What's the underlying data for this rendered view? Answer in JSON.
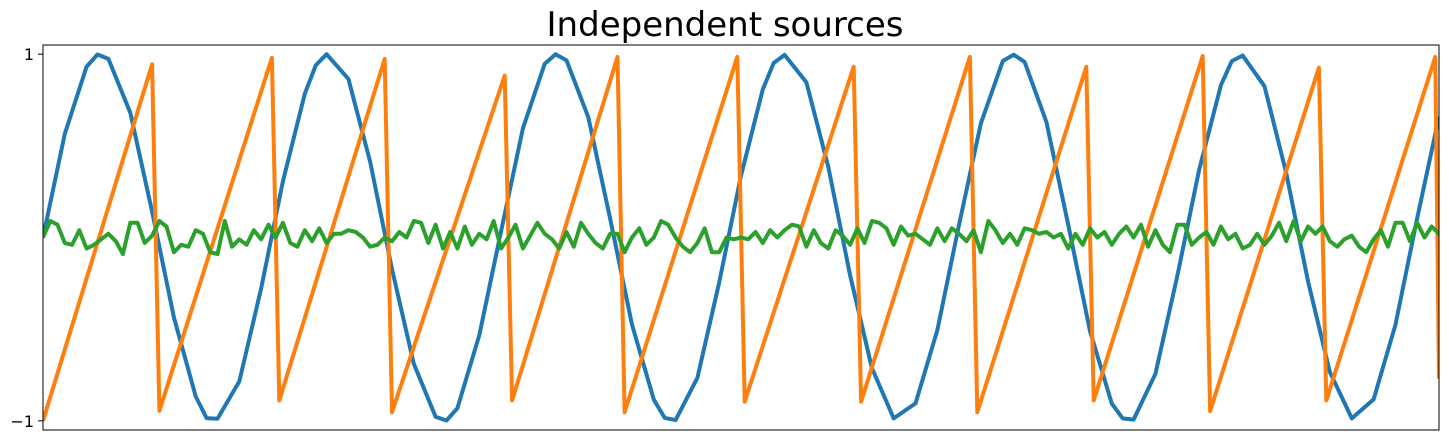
{
  "chart_data": {
    "type": "line",
    "title": "Independent sources",
    "xlabel": "",
    "ylabel": "",
    "xlim": [
      0,
      8
    ],
    "ylim": [
      -1.05,
      1.05
    ],
    "yticks": [
      {
        "value": 1,
        "label": "1"
      },
      {
        "value": -1,
        "label": "−1"
      }
    ],
    "xticks": [],
    "grid": false,
    "legend": "none",
    "series": [
      {
        "color": "#1f77b4",
        "points": [
          [
            0.0,
            0.0
          ],
          [
            0.125,
            0.565
          ],
          [
            0.25,
            0.932
          ],
          [
            0.3125,
            0.998
          ],
          [
            0.375,
            0.974
          ],
          [
            0.5,
            0.681
          ],
          [
            0.625,
            0.141
          ],
          [
            0.75,
            -0.435
          ],
          [
            0.875,
            -0.867
          ],
          [
            0.9375,
            -0.985
          ],
          [
            1.0,
            -0.989
          ],
          [
            1.125,
            -0.785
          ],
          [
            1.25,
            -0.279
          ],
          [
            1.375,
            0.306
          ],
          [
            1.5,
            0.784
          ],
          [
            1.5625,
            0.939
          ],
          [
            1.625,
            1.0
          ],
          [
            1.75,
            0.865
          ],
          [
            1.875,
            0.412
          ],
          [
            2.0,
            -0.173
          ],
          [
            2.125,
            -0.689
          ],
          [
            2.25,
            -0.978
          ],
          [
            2.3125,
            -0.998
          ],
          [
            2.375,
            -0.931
          ],
          [
            2.5,
            -0.533
          ],
          [
            2.625,
            0.035
          ],
          [
            2.75,
            0.595
          ],
          [
            2.875,
            0.947
          ],
          [
            2.9375,
            1.0
          ],
          [
            3.0,
            0.966
          ],
          [
            3.125,
            0.656
          ],
          [
            3.25,
            0.104
          ],
          [
            3.375,
            -0.473
          ],
          [
            3.5,
            -0.884
          ],
          [
            3.5625,
            -0.984
          ],
          [
            3.625,
            -0.996
          ],
          [
            3.75,
            -0.765
          ],
          [
            3.875,
            -0.245
          ],
          [
            4.0,
            0.337
          ],
          [
            4.125,
            0.808
          ],
          [
            4.1875,
            0.952
          ],
          [
            4.25,
            0.996
          ],
          [
            4.375,
            0.846
          ],
          [
            4.5,
            0.385
          ],
          [
            4.625,
            -0.206
          ],
          [
            4.75,
            -0.712
          ],
          [
            4.875,
            -0.987
          ],
          [
            5.0,
            -0.905
          ],
          [
            5.125,
            -0.506
          ],
          [
            5.25,
            0.071
          ],
          [
            5.375,
            0.623
          ],
          [
            5.5,
            0.963
          ],
          [
            5.5625,
            0.997
          ],
          [
            5.625,
            0.958
          ],
          [
            5.75,
            0.63
          ],
          [
            5.875,
            0.07
          ],
          [
            6.0,
            -0.51
          ],
          [
            6.125,
            -0.906
          ],
          [
            6.1875,
            -0.987
          ],
          [
            6.25,
            -0.993
          ],
          [
            6.375,
            -0.744
          ],
          [
            6.5,
            -0.21
          ],
          [
            6.625,
            0.368
          ],
          [
            6.75,
            0.831
          ],
          [
            6.8125,
            0.962
          ],
          [
            6.875,
            0.993
          ],
          [
            7.0,
            0.825
          ],
          [
            7.125,
            0.35
          ],
          [
            7.25,
            -0.241
          ],
          [
            7.375,
            -0.734
          ],
          [
            7.5,
            -0.987
          ],
          [
            7.625,
            -0.883
          ],
          [
            7.75,
            -0.477
          ],
          [
            7.875,
            0.106
          ],
          [
            8.0,
            0.659
          ]
        ]
      },
      {
        "color": "#ff7f0e",
        "points": [
          [
            0.0,
            -1.0
          ],
          [
            0.625,
            0.945
          ],
          [
            0.667,
            -0.945
          ],
          [
            1.312,
            0.98
          ],
          [
            1.354,
            -0.889
          ],
          [
            1.958,
            0.974
          ],
          [
            2.0,
            -0.953
          ],
          [
            2.646,
            0.883
          ],
          [
            2.688,
            -0.889
          ],
          [
            3.292,
            0.985
          ],
          [
            3.333,
            -0.953
          ],
          [
            3.979,
            0.985
          ],
          [
            4.021,
            -0.895
          ],
          [
            4.646,
            0.931
          ],
          [
            4.688,
            -0.895
          ],
          [
            5.312,
            0.985
          ],
          [
            5.354,
            -0.953
          ],
          [
            5.979,
            0.931
          ],
          [
            6.021,
            -0.889
          ],
          [
            6.646,
            0.99
          ],
          [
            6.688,
            -0.947
          ],
          [
            7.312,
            0.926
          ],
          [
            7.354,
            -0.889
          ],
          [
            7.979,
            0.985
          ],
          [
            8.0,
            -0.77
          ]
        ]
      },
      {
        "color": "#2ca02c",
        "points": [
          [
            0.0,
            0.0
          ],
          [
            0.042,
            0.09
          ],
          [
            0.083,
            0.07
          ],
          [
            0.125,
            -0.03
          ],
          [
            0.167,
            -0.04
          ],
          [
            0.208,
            0.04
          ],
          [
            0.25,
            -0.06
          ],
          [
            0.292,
            -0.04
          ],
          [
            0.333,
            -0.01
          ],
          [
            0.375,
            0.02
          ],
          [
            0.417,
            -0.02
          ],
          [
            0.458,
            -0.09
          ],
          [
            0.5,
            0.08
          ],
          [
            0.542,
            0.08
          ],
          [
            0.583,
            -0.03
          ],
          [
            0.625,
            0.01
          ],
          [
            0.667,
            0.09
          ],
          [
            0.708,
            0.06
          ],
          [
            0.75,
            -0.08
          ],
          [
            0.792,
            -0.04
          ],
          [
            0.833,
            -0.05
          ],
          [
            0.875,
            0.04
          ],
          [
            0.917,
            0.02
          ],
          [
            0.958,
            -0.08
          ],
          [
            1.0,
            -0.09
          ],
          [
            1.042,
            0.09
          ],
          [
            1.083,
            -0.05
          ],
          [
            1.125,
            -0.01
          ],
          [
            1.167,
            -0.04
          ],
          [
            1.208,
            0.04
          ],
          [
            1.25,
            -0.01
          ],
          [
            1.292,
            0.07
          ],
          [
            1.333,
            0.0
          ],
          [
            1.375,
            0.08
          ],
          [
            1.417,
            -0.03
          ],
          [
            1.458,
            -0.05
          ],
          [
            1.5,
            0.04
          ],
          [
            1.542,
            -0.02
          ],
          [
            1.583,
            0.05
          ],
          [
            1.625,
            -0.03
          ],
          [
            1.667,
            0.02
          ],
          [
            1.708,
            0.02
          ],
          [
            1.75,
            0.04
          ],
          [
            1.792,
            0.03
          ],
          [
            1.833,
            0.0
          ],
          [
            1.875,
            -0.05
          ],
          [
            1.917,
            -0.04
          ],
          [
            1.958,
            0.0
          ],
          [
            2.0,
            -0.02
          ],
          [
            2.042,
            0.03
          ],
          [
            2.083,
            0.0
          ],
          [
            2.125,
            0.09
          ],
          [
            2.167,
            0.08
          ],
          [
            2.208,
            -0.03
          ],
          [
            2.25,
            0.07
          ],
          [
            2.292,
            -0.06
          ],
          [
            2.333,
            0.03
          ],
          [
            2.375,
            -0.06
          ],
          [
            2.417,
            0.06
          ],
          [
            2.458,
            -0.04
          ],
          [
            2.5,
            0.02
          ],
          [
            2.542,
            -0.01
          ],
          [
            2.583,
            0.09
          ],
          [
            2.625,
            -0.06
          ],
          [
            2.667,
            0.0
          ],
          [
            2.708,
            0.07
          ],
          [
            2.75,
            -0.06
          ],
          [
            2.792,
            0.01
          ],
          [
            2.833,
            0.08
          ],
          [
            2.875,
            0.02
          ],
          [
            2.917,
            -0.01
          ],
          [
            2.958,
            -0.06
          ],
          [
            3.0,
            0.03
          ],
          [
            3.042,
            -0.05
          ],
          [
            3.083,
            0.08
          ],
          [
            3.125,
            0.02
          ],
          [
            3.167,
            -0.03
          ],
          [
            3.208,
            -0.06
          ],
          [
            3.25,
            0.02
          ],
          [
            3.292,
            0.02
          ],
          [
            3.333,
            -0.08
          ],
          [
            3.375,
            0.0
          ],
          [
            3.417,
            0.05
          ],
          [
            3.458,
            -0.04
          ],
          [
            3.5,
            0.0
          ],
          [
            3.542,
            0.09
          ],
          [
            3.583,
            0.07
          ],
          [
            3.625,
            0.0
          ],
          [
            3.667,
            -0.05
          ],
          [
            3.708,
            -0.08
          ],
          [
            3.75,
            -0.03
          ],
          [
            3.792,
            0.05
          ],
          [
            3.833,
            -0.08
          ],
          [
            3.875,
            -0.08
          ],
          [
            3.917,
            0.0
          ],
          [
            3.958,
            -0.01
          ],
          [
            4.0,
            0.0
          ],
          [
            4.042,
            -0.01
          ],
          [
            4.083,
            0.03
          ],
          [
            4.125,
            -0.03
          ],
          [
            4.167,
            0.04
          ],
          [
            4.208,
            0.0
          ],
          [
            4.25,
            0.04
          ],
          [
            4.292,
            0.07
          ],
          [
            4.333,
            0.06
          ],
          [
            4.375,
            -0.05
          ],
          [
            4.417,
            0.04
          ],
          [
            4.458,
            -0.03
          ],
          [
            4.5,
            -0.06
          ],
          [
            4.542,
            0.04
          ],
          [
            4.583,
            0.01
          ],
          [
            4.625,
            -0.04
          ],
          [
            4.667,
            0.05
          ],
          [
            4.708,
            -0.03
          ],
          [
            4.75,
            0.09
          ],
          [
            4.792,
            0.08
          ],
          [
            4.833,
            0.05
          ],
          [
            4.875,
            -0.04
          ],
          [
            4.917,
            0.06
          ],
          [
            4.958,
            0.01
          ],
          [
            5.0,
            0.02
          ],
          [
            5.042,
            -0.01
          ],
          [
            5.083,
            -0.04
          ],
          [
            5.125,
            0.05
          ],
          [
            5.167,
            -0.02
          ],
          [
            5.208,
            0.05
          ],
          [
            5.25,
            0.02
          ],
          [
            5.292,
            -0.02
          ],
          [
            5.333,
            0.04
          ],
          [
            5.375,
            -0.08
          ],
          [
            5.417,
            0.09
          ],
          [
            5.458,
            0.04
          ],
          [
            5.5,
            -0.03
          ],
          [
            5.542,
            0.02
          ],
          [
            5.583,
            -0.04
          ],
          [
            5.625,
            0.05
          ],
          [
            5.667,
            0.04
          ],
          [
            5.708,
            0.02
          ],
          [
            5.75,
            0.03
          ],
          [
            5.792,
            0.0
          ],
          [
            5.833,
            0.02
          ],
          [
            5.875,
            -0.06
          ],
          [
            5.917,
            0.02
          ],
          [
            5.958,
            -0.04
          ],
          [
            6.0,
            0.05
          ],
          [
            6.042,
            0.0
          ],
          [
            6.083,
            0.03
          ],
          [
            6.125,
            -0.04
          ],
          [
            6.167,
            0.02
          ],
          [
            6.208,
            0.06
          ],
          [
            6.25,
            0.0
          ],
          [
            6.292,
            0.07
          ],
          [
            6.333,
            -0.05
          ],
          [
            6.375,
            0.04
          ],
          [
            6.417,
            -0.04
          ],
          [
            6.458,
            -0.08
          ],
          [
            6.5,
            0.07
          ],
          [
            6.542,
            0.07
          ],
          [
            6.583,
            -0.04
          ],
          [
            6.625,
            0.0
          ],
          [
            6.667,
            0.03
          ],
          [
            6.708,
            -0.04
          ],
          [
            6.75,
            0.06
          ],
          [
            6.792,
            -0.01
          ],
          [
            6.833,
            0.02
          ],
          [
            6.875,
            -0.06
          ],
          [
            6.917,
            -0.04
          ],
          [
            6.958,
            0.02
          ],
          [
            7.0,
            -0.04
          ],
          [
            7.042,
            0.01
          ],
          [
            7.083,
            0.08
          ],
          [
            7.125,
            -0.02
          ],
          [
            7.167,
            0.09
          ],
          [
            7.208,
            -0.02
          ],
          [
            7.25,
            0.06
          ],
          [
            7.292,
            0.02
          ],
          [
            7.333,
            0.06
          ],
          [
            7.375,
            -0.02
          ],
          [
            7.417,
            -0.05
          ],
          [
            7.458,
            -0.01
          ],
          [
            7.5,
            0.01
          ],
          [
            7.542,
            -0.05
          ],
          [
            7.583,
            -0.08
          ],
          [
            7.625,
            -0.01
          ],
          [
            7.667,
            0.04
          ],
          [
            7.708,
            -0.05
          ],
          [
            7.75,
            0.08
          ],
          [
            7.792,
            0.08
          ],
          [
            7.833,
            -0.02
          ],
          [
            7.875,
            0.08
          ],
          [
            7.917,
            0.0
          ],
          [
            7.958,
            0.06
          ],
          [
            8.0,
            0.02
          ],
          [
            8.042,
            -0.04
          ],
          [
            8.083,
            -0.07
          ]
        ]
      }
    ]
  }
}
